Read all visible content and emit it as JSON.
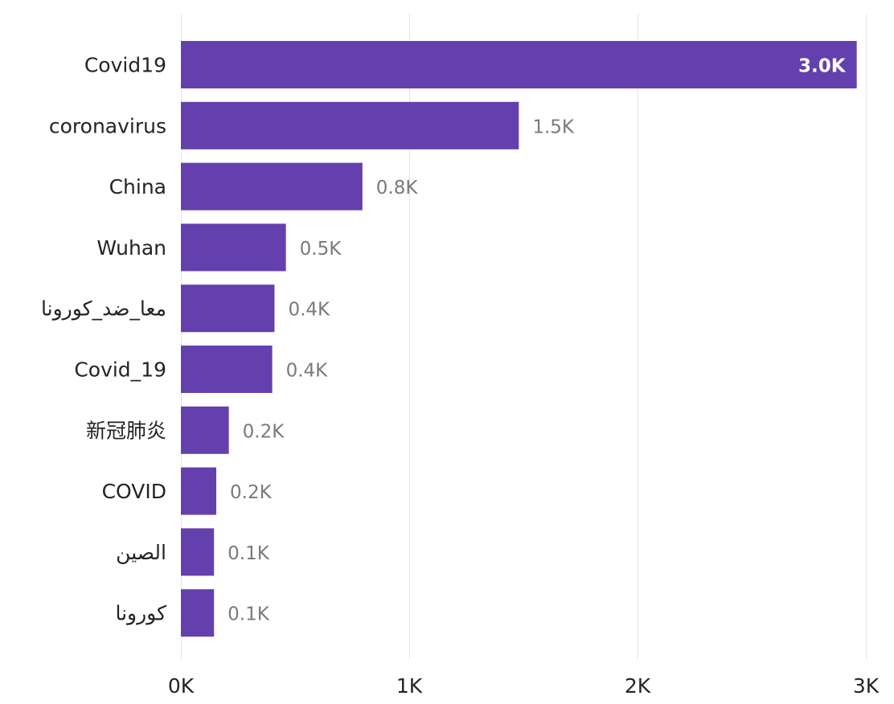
{
  "chart_data": {
    "type": "bar",
    "orientation": "horizontal",
    "categories": [
      "Covid19",
      "coronavirus",
      "China",
      "Wuhan",
      "معا_ضد_كورونا",
      "Covid_19",
      "新冠肺炎",
      "COVID",
      "الصين",
      "كورونا"
    ],
    "values": [
      2960,
      1480,
      795,
      460,
      410,
      400,
      210,
      155,
      145,
      145
    ],
    "data_labels": [
      "3.0K",
      "1.5K",
      "0.8K",
      "0.5K",
      "0.4K",
      "0.4K",
      "0.2K",
      "0.2K",
      "0.1K",
      "0.1K"
    ],
    "xlim": [
      0,
      3000
    ],
    "x_ticks": [
      0,
      1000,
      2000,
      3000
    ],
    "x_tick_labels": [
      "0K",
      "1K",
      "2K",
      "3K"
    ],
    "grid": true,
    "legend": "none",
    "title": "",
    "xlabel": "",
    "ylabel": ""
  },
  "colors": {
    "bar": "#6340ae",
    "grid": "#e3e3e3",
    "label": "#252423",
    "data_label_outside": "#7a7a7a",
    "data_label_inside": "#ffffff"
  }
}
